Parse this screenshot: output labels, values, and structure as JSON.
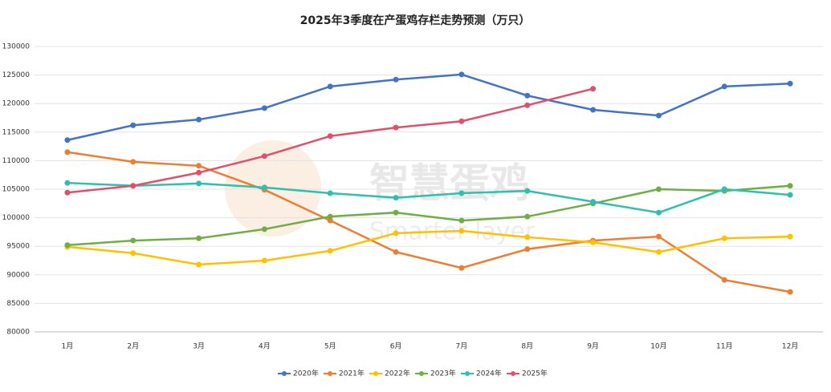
{
  "chart_data": {
    "type": "line",
    "title": "2025年3季度在产蛋鸡存栏走势预测（万只）",
    "watermark": [
      "智慧蛋鸡",
      "Smarter layer"
    ],
    "categories": [
      "1月",
      "2月",
      "3月",
      "4月",
      "5月",
      "6月",
      "7月",
      "8月",
      "9月",
      "10月",
      "11月",
      "12月"
    ],
    "series": [
      {
        "name": "2020年",
        "color": "#4472c4",
        "values": [
          113600,
          116200,
          117200,
          119200,
          123000,
          124200,
          125100,
          121400,
          118900,
          117900,
          123000,
          123500
        ]
      },
      {
        "name": "2021年",
        "color": "#ed7d31",
        "values": [
          111500,
          109800,
          109100,
          104900,
          99500,
          94000,
          91200,
          94500,
          96000,
          96700,
          89100,
          87000
        ]
      },
      {
        "name": "2022年",
        "color": "#ffc000",
        "values": [
          94900,
          93800,
          91800,
          92500,
          94200,
          97300,
          97700,
          96600,
          95700,
          94000,
          96400,
          96700
        ]
      },
      {
        "name": "2023年",
        "color": "#70ad47",
        "values": [
          95200,
          96000,
          96400,
          98000,
          100200,
          100900,
          99500,
          100200,
          102500,
          105000,
          104700,
          105600
        ]
      },
      {
        "name": "2024年",
        "color": "#2fbfb0",
        "values": [
          106100,
          105600,
          106000,
          105300,
          104300,
          103500,
          104300,
          104700,
          102800,
          100900,
          105000,
          104000
        ]
      },
      {
        "name": "2025年",
        "color": "#e0506a",
        "values": [
          104400,
          105600,
          107900,
          110800,
          114300,
          115800,
          116900,
          119700,
          122600,
          null,
          null,
          null
        ]
      }
    ],
    "ylim": [
      80000,
      130000
    ],
    "yticks": [
      80000,
      85000,
      90000,
      95000,
      100000,
      105000,
      110000,
      115000,
      120000,
      125000,
      130000
    ],
    "grid": true,
    "legend": "bottom"
  }
}
